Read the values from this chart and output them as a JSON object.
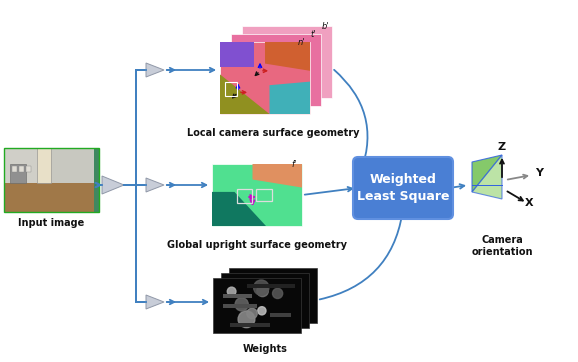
{
  "fig_w": 5.78,
  "fig_h": 3.62,
  "dpi": 100,
  "bg": "#ffffff",
  "blue": "#4080c0",
  "wls_bg": "#4a7fd4",
  "wls_text": "Weighted\nLeast Square",
  "wls_fg": "#ffffff",
  "label_fontsize": 7,
  "title_fontsize": 7,
  "cam_label": "Camera\norientation",
  "input_label": "Input image",
  "local_label": "Local camera surface geometry",
  "global_label": "Global upright surface geometry",
  "weights_label": "Weights",
  "nn_face": "#c8cdd8",
  "nn_edge": "#9098a8"
}
